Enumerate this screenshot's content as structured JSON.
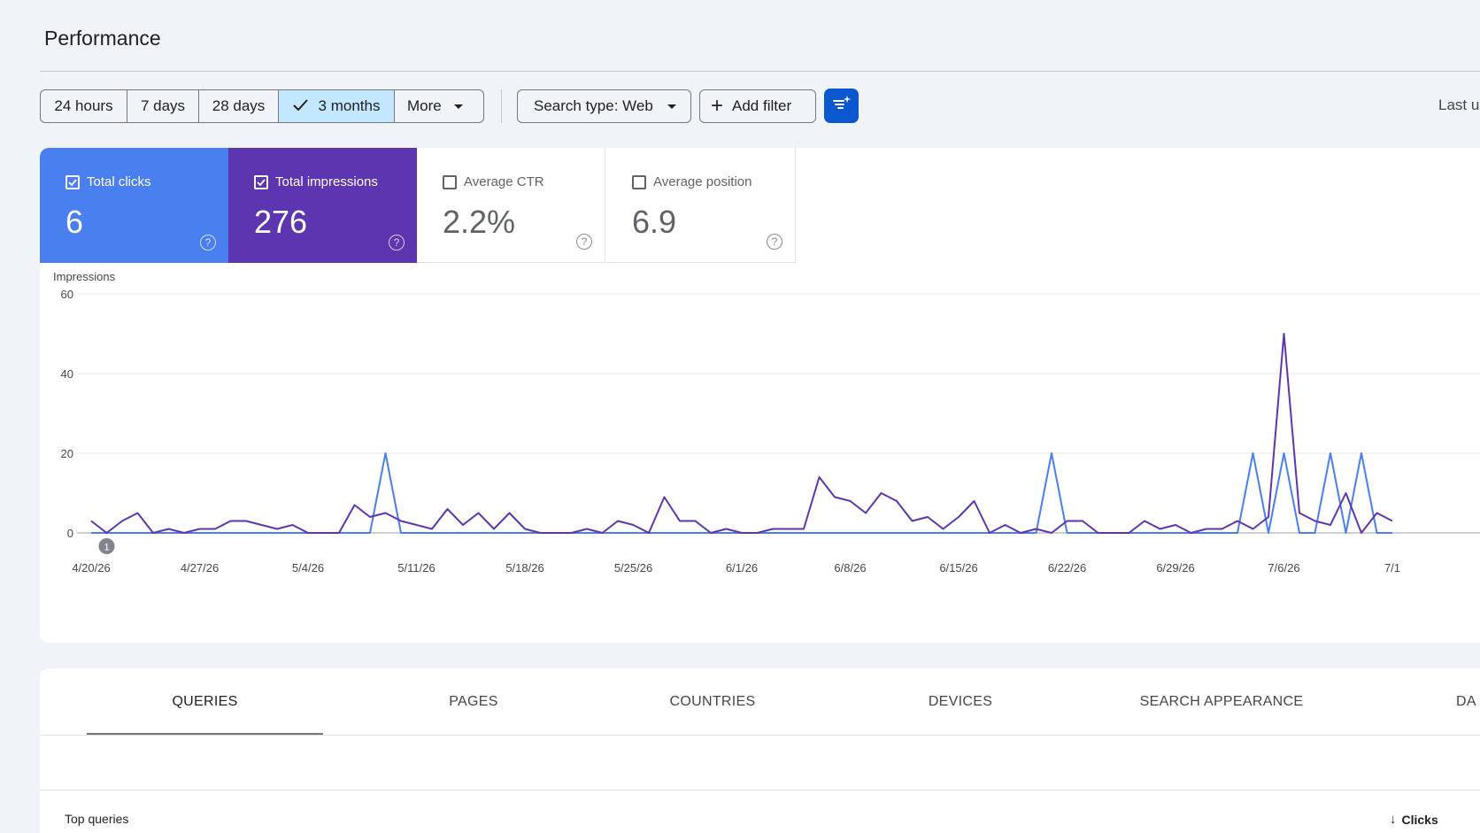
{
  "page": {
    "title": "Performance",
    "last_updated": "Last u"
  },
  "toolbar": {
    "ranges": [
      {
        "label": "24 hours",
        "selected": false
      },
      {
        "label": "7 days",
        "selected": false
      },
      {
        "label": "28 days",
        "selected": false
      },
      {
        "label": "3 months",
        "selected": true
      },
      {
        "label": "More",
        "selected": false
      }
    ],
    "search_type": "Search type: Web",
    "add_filter": "Add filter",
    "icons": {
      "check": "check-icon",
      "caret": "dropdown-caret-icon",
      "plus": "plus-icon",
      "filter_action": "filter-sparkle-icon"
    }
  },
  "metrics": [
    {
      "label": "Total clicks",
      "value": "6",
      "checked": true,
      "color": "#4a7ff0"
    },
    {
      "label": "Total impressions",
      "value": "276",
      "checked": true,
      "color": "#5e35b1"
    },
    {
      "label": "Average CTR",
      "value": "2.2%",
      "checked": false
    },
    {
      "label": "Average position",
      "value": "6.9",
      "checked": false
    }
  ],
  "chart_data": {
    "type": "line",
    "ylabel": "Impressions",
    "ylim": [
      0,
      60
    ],
    "yticks": [
      0,
      20,
      40,
      60
    ],
    "x_tick_labels": [
      "4/20/26",
      "4/27/26",
      "5/4/26",
      "5/11/26",
      "5/18/26",
      "5/25/26",
      "6/1/26",
      "6/8/26",
      "6/15/26",
      "6/22/26",
      "6/29/26",
      "7/6/26",
      "7/1"
    ],
    "annotation": {
      "label": "1",
      "x_day": 1
    },
    "series": [
      {
        "color": "#5e35b1",
        "values": [
          3,
          0,
          3,
          5,
          0,
          1,
          0,
          1,
          1,
          3,
          3,
          2,
          1,
          2,
          0,
          0,
          0,
          7,
          4,
          5,
          3,
          2,
          1,
          6,
          2,
          5,
          1,
          5,
          1,
          0,
          0,
          0,
          1,
          0,
          3,
          2,
          0,
          9,
          3,
          3,
          0,
          1,
          0,
          0,
          1,
          1,
          1,
          14,
          9,
          8,
          5,
          10,
          8,
          3,
          4,
          1,
          4,
          8,
          0,
          2,
          0,
          1,
          0,
          3,
          3,
          0,
          0,
          0,
          3,
          1,
          2,
          0,
          1,
          1,
          3,
          1,
          4,
          50,
          5,
          3,
          2,
          10,
          0,
          5,
          3
        ]
      },
      {
        "color": "#4a7ff0",
        "values": [
          0,
          0,
          0,
          0,
          0,
          0,
          0,
          0,
          0,
          0,
          0,
          0,
          0,
          0,
          0,
          0,
          0,
          0,
          0,
          20,
          0,
          0,
          0,
          0,
          0,
          0,
          0,
          0,
          0,
          0,
          0,
          0,
          0,
          0,
          0,
          0,
          0,
          0,
          0,
          0,
          0,
          0,
          0,
          0,
          0,
          0,
          0,
          0,
          0,
          0,
          0,
          0,
          0,
          0,
          0,
          0,
          0,
          0,
          0,
          0,
          0,
          0,
          20,
          0,
          0,
          0,
          0,
          0,
          0,
          0,
          0,
          0,
          0,
          0,
          0,
          20,
          0,
          20,
          0,
          0,
          20,
          0,
          20,
          0,
          0
        ]
      }
    ]
  },
  "tabs": {
    "items": [
      "QUERIES",
      "PAGES",
      "COUNTRIES",
      "DEVICES",
      "SEARCH APPEARANCE",
      "DA"
    ],
    "active": 0
  },
  "table": {
    "title": "Top queries",
    "sort_column": "Clicks"
  }
}
